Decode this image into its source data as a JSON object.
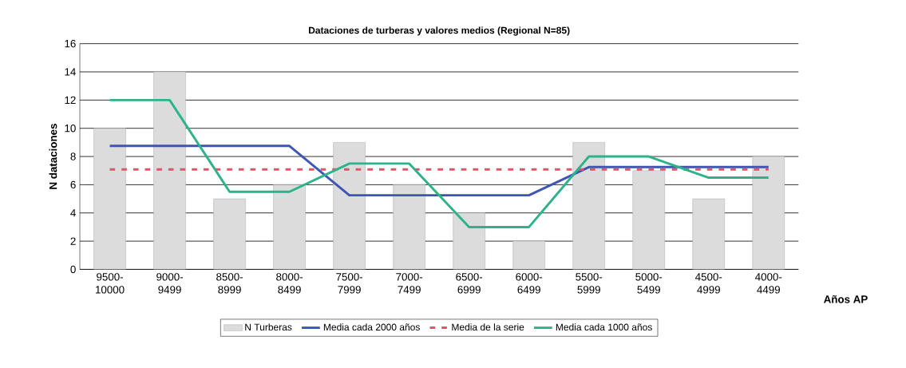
{
  "chart_data": {
    "type": "bar",
    "title": "Dataciones de turberas y valores medios (Regional N=85)",
    "xlabel": "Años AP",
    "ylabel": "N dataciones",
    "categories": [
      "9500-10000",
      "9000-9499",
      "8500-8999",
      "8000-8499",
      "7500-7999",
      "7000-7499",
      "6500-6999",
      "6000-6499",
      "5500-5999",
      "5000-5499",
      "4500-4999",
      "4000-4499"
    ],
    "series": [
      {
        "name": "N Turberas",
        "color": "#dcdcdc",
        "values": [
          10,
          14,
          5,
          6,
          9,
          6,
          4,
          2,
          9,
          7,
          5,
          8
        ]
      },
      {
        "name": "Media cada 2000 años",
        "type": "line",
        "color": "#3f55b5",
        "line_style": "solid",
        "values": [
          8.75,
          8.75,
          8.75,
          8.75,
          5.25,
          5.25,
          5.25,
          5.25,
          7.25,
          7.25,
          7.25,
          7.25
        ]
      },
      {
        "name": "Media de la serie",
        "type": "line",
        "color": "#e8506a",
        "line_style": "dashed",
        "values": [
          7.08,
          7.08,
          7.08,
          7.08,
          7.08,
          7.08,
          7.08,
          7.08,
          7.08,
          7.08,
          7.08,
          7.08
        ]
      },
      {
        "name": "Media cada 1000 años",
        "type": "line",
        "color": "#2db38a",
        "line_style": "solid",
        "values": [
          12,
          12,
          5.5,
          5.5,
          7.5,
          7.5,
          3,
          3,
          8,
          8,
          6.5,
          6.5
        ]
      }
    ],
    "ylim": [
      0,
      16
    ],
    "yticks": [
      0,
      2,
      4,
      6,
      8,
      10,
      12,
      14,
      16
    ],
    "grid": "y",
    "legend": "bottom",
    "marker": "none"
  }
}
